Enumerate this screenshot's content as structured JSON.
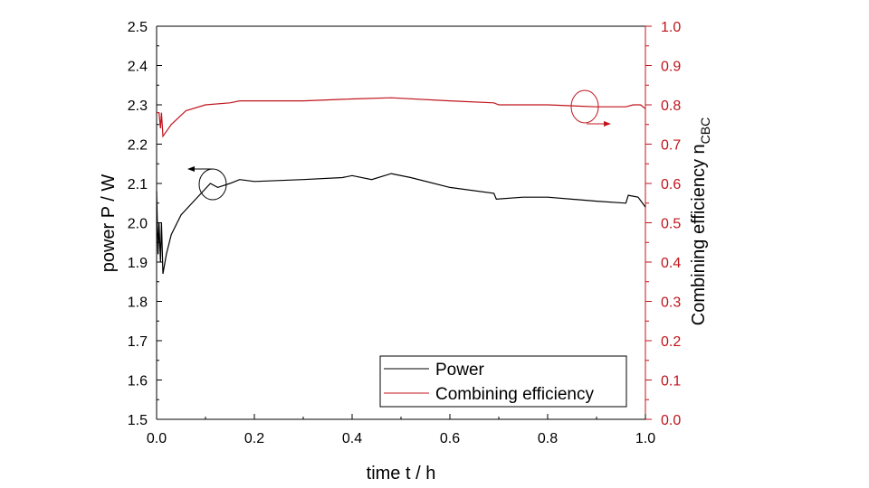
{
  "chart_data": {
    "type": "line",
    "xlabel": "time t / h",
    "ylabel": "power P / W",
    "y2label": "Combining efficiency n",
    "y2label_sub": "CBC",
    "xlim": [
      0,
      1.0
    ],
    "ylim": [
      1.5,
      2.5
    ],
    "y2lim": [
      0,
      1.0
    ],
    "xticks": [
      "0.0",
      "0.2",
      "0.4",
      "0.6",
      "0.8",
      "1.0"
    ],
    "yticks": [
      "1.5",
      "1.6",
      "1.7",
      "1.8",
      "1.9",
      "2.0",
      "2.1",
      "2.2",
      "2.3",
      "2.4",
      "2.5"
    ],
    "y2ticks": [
      "0.0",
      "0.1",
      "0.2",
      "0.3",
      "0.4",
      "0.5",
      "0.6",
      "0.7",
      "0.8",
      "0.9",
      "1.0"
    ],
    "grid": false,
    "legend_position": "bottom-right",
    "colors": {
      "power": "#000000",
      "efficiency": "#c0141c"
    },
    "series": [
      {
        "name": "Power",
        "axis": "left",
        "x": [
          0,
          0.003,
          0.005,
          0.008,
          0.01,
          0.013,
          0.02,
          0.03,
          0.05,
          0.08,
          0.11,
          0.125,
          0.15,
          0.17,
          0.2,
          0.3,
          0.38,
          0.4,
          0.44,
          0.48,
          0.52,
          0.6,
          0.69,
          0.695,
          0.75,
          0.8,
          0.9,
          0.96,
          0.965,
          0.985,
          1.0
        ],
        "y": [
          2.08,
          1.92,
          2.0,
          1.9,
          2.0,
          1.87,
          1.92,
          1.97,
          2.02,
          2.06,
          2.1,
          2.09,
          2.1,
          2.11,
          2.105,
          2.11,
          2.115,
          2.12,
          2.11,
          2.125,
          2.115,
          2.09,
          2.075,
          2.06,
          2.065,
          2.065,
          2.055,
          2.05,
          2.07,
          2.065,
          2.04
        ]
      },
      {
        "name": "Combining efficiency",
        "axis": "right",
        "x": [
          0,
          0.005,
          0.008,
          0.01,
          0.013,
          0.03,
          0.06,
          0.1,
          0.15,
          0.17,
          0.3,
          0.4,
          0.48,
          0.6,
          0.69,
          0.7,
          0.8,
          0.9,
          0.96,
          0.975,
          0.99,
          1.0
        ],
        "y": [
          0.78,
          0.78,
          0.74,
          0.78,
          0.72,
          0.75,
          0.785,
          0.8,
          0.805,
          0.81,
          0.81,
          0.815,
          0.818,
          0.81,
          0.805,
          0.8,
          0.8,
          0.795,
          0.795,
          0.8,
          0.8,
          0.79
        ]
      }
    ]
  }
}
